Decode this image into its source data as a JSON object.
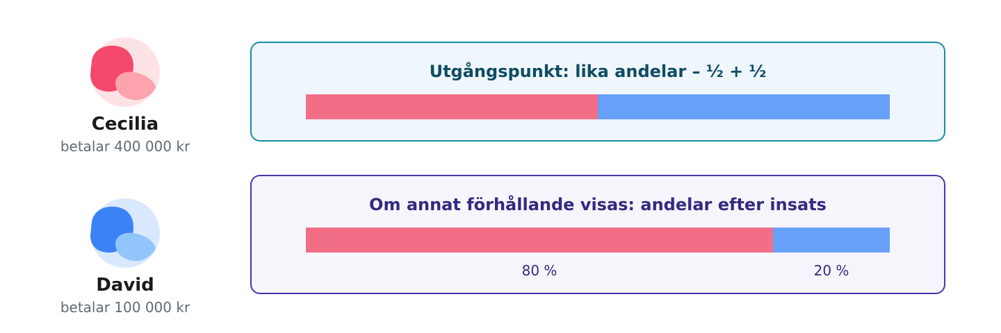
{
  "people": [
    {
      "name": "Cecilia",
      "payment": "betalar 400 000 kr",
      "icon": "avatar-icon",
      "colors": {
        "bg": "#fde3e6",
        "main": "#f4496b",
        "secondary": "#fca3ad"
      }
    },
    {
      "name": "David",
      "payment": "betalar 100 000 kr",
      "icon": "avatar-icon",
      "colors": {
        "bg": "#d9e8fd",
        "main": "#3b82f6",
        "secondary": "#93c5fd"
      }
    }
  ],
  "cards": [
    {
      "title": "Utgångspunkt: lika andelar – ½ + ½",
      "shares": [
        0.5,
        0.5
      ],
      "colors": {
        "border": "#178ea3",
        "background": "#eff7fd",
        "title": "#0f4c63"
      }
    },
    {
      "title": "Om annat förhållande visas: andelar efter insats",
      "shares": [
        0.8,
        0.2
      ],
      "labels": [
        "80 %",
        "20 %"
      ],
      "colors": {
        "border": "#4536ad",
        "background": "#f6f5fb",
        "title": "#322b80"
      }
    }
  ],
  "colors": {
    "person1": "#f26e86",
    "person2": "#67a0f8"
  }
}
